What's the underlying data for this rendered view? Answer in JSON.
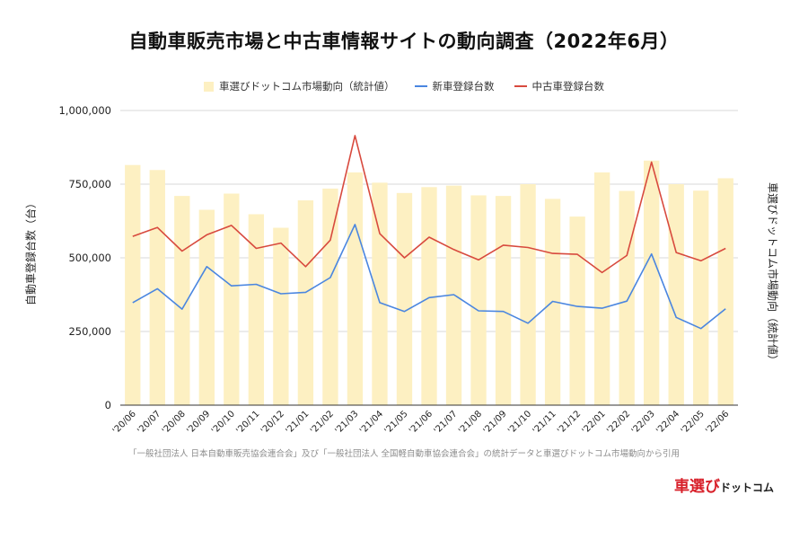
{
  "title": "自動車販売市場と中古車情報サイトの動向調査（2022年6月）",
  "legend": [
    {
      "label": "車選びドットコム市場動向（統計値）",
      "color": "#fdf0c2",
      "kind": "box"
    },
    {
      "label": "新車登録台数",
      "color": "#4a86e0",
      "kind": "line"
    },
    {
      "label": "中古車登録台数",
      "color": "#d84a3e",
      "kind": "line"
    }
  ],
  "source_note": "「一般社団法人 日本自動車販売協会連合会」及び「一般社団法人 全国軽自動車協会連合会」の統計データと車選びドットコム市場動向から引用",
  "logo": {
    "main": "車選び",
    "sub": "ドットコム"
  },
  "chart_data": {
    "type": "bar+line",
    "title": "自動車販売市場と中古車情報サイトの動向調査（2022年6月）",
    "categories": [
      "'20/06",
      "'20/07",
      "'20/08",
      "'20/09",
      "'20/10",
      "'20/11",
      "'20/12",
      "'21/01",
      "'21/02",
      "'21/03",
      "'21/04",
      "'21/05",
      "'21/06",
      "'21/07",
      "'21/08",
      "'21/09",
      "'21/10",
      "'21/11",
      "'21/12",
      "'22/01",
      "'22/02",
      "'22/03",
      "'22/04",
      "'22/05",
      "'22/06"
    ],
    "ylabel_left": "自動車登録台数（台）",
    "ylabel_right": "車選びドットコム市場動向（統計値）",
    "ylim": [
      0,
      1000000
    ],
    "yticks": [
      0,
      250000,
      500000,
      750000,
      1000000
    ],
    "ytick_labels": [
      "0",
      "250,000",
      "500,000",
      "750,000",
      "1,000,000"
    ],
    "grid": true,
    "legend_position": "top",
    "series": [
      {
        "name": "車選びドットコム市場動向（統計値）",
        "type": "bar",
        "axis": "right",
        "color": "#fdf0c2",
        "values": [
          815000,
          798000,
          710000,
          663000,
          718000,
          648000,
          602000,
          695000,
          735000,
          790000,
          755000,
          720000,
          740000,
          745000,
          712000,
          710000,
          750000,
          700000,
          640000,
          790000,
          727000,
          830000,
          750000,
          728000,
          770000
        ]
      },
      {
        "name": "新車登録台数",
        "type": "line",
        "color": "#4a86e0",
        "values": [
          348000,
          395000,
          326000,
          470000,
          405000,
          410000,
          378000,
          383000,
          433000,
          613000,
          348000,
          318000,
          365000,
          375000,
          320000,
          318000,
          278000,
          352000,
          335000,
          329000,
          353000,
          513000,
          298000,
          260000,
          327000
        ]
      },
      {
        "name": "中古車登録台数",
        "type": "line",
        "color": "#d84a3e",
        "values": [
          573000,
          603000,
          523000,
          578000,
          610000,
          532000,
          550000,
          470000,
          560000,
          915000,
          582000,
          500000,
          570000,
          528000,
          493000,
          543000,
          535000,
          515000,
          512000,
          450000,
          508000,
          825000,
          518000,
          490000,
          532000
        ]
      }
    ]
  }
}
